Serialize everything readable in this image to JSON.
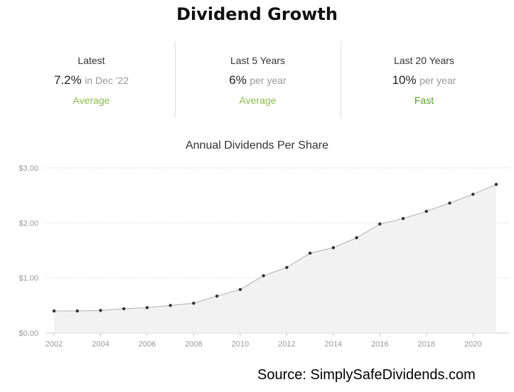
{
  "header": {
    "title": "Dividend Growth"
  },
  "stats": [
    {
      "label": "Latest",
      "value": "7.2%",
      "suffix": "in Dec '22",
      "rating": "Average",
      "rating_color": "#8dbb55"
    },
    {
      "label": "Last 5 Years",
      "value": "6%",
      "suffix": "per year",
      "rating": "Average",
      "rating_color": "#8dbb55"
    },
    {
      "label": "Last 20 Years",
      "value": "10%",
      "suffix": "per year",
      "rating": "Fast",
      "rating_color": "#5c9e2e"
    }
  ],
  "chart_data": {
    "type": "area",
    "title": "Annual Dividends Per Share",
    "xlabel": "",
    "ylabel": "",
    "x": [
      2002,
      2003,
      2004,
      2005,
      2006,
      2007,
      2008,
      2009,
      2010,
      2011,
      2012,
      2013,
      2014,
      2015,
      2016,
      2017,
      2018,
      2019,
      2020,
      2021
    ],
    "values": [
      0.4,
      0.4,
      0.41,
      0.44,
      0.46,
      0.5,
      0.54,
      0.67,
      0.79,
      1.04,
      1.19,
      1.45,
      1.55,
      1.73,
      1.98,
      2.08,
      2.21,
      2.36,
      2.52,
      2.7
    ],
    "xticks": [
      "2002",
      "2004",
      "2006",
      "2008",
      "2010",
      "2012",
      "2014",
      "2016",
      "2018",
      "2020"
    ],
    "yticks": [
      "$0.00",
      "$1.00",
      "$2.00",
      "$3.00"
    ],
    "ylim": [
      0,
      3
    ],
    "grid": true,
    "colors": {
      "line": "#bbbbbb",
      "fill": "#f2f2f2",
      "point": "#333333",
      "grid": "#cccccc"
    }
  },
  "source": {
    "text": "Source: SimplySafeDividends.com"
  }
}
